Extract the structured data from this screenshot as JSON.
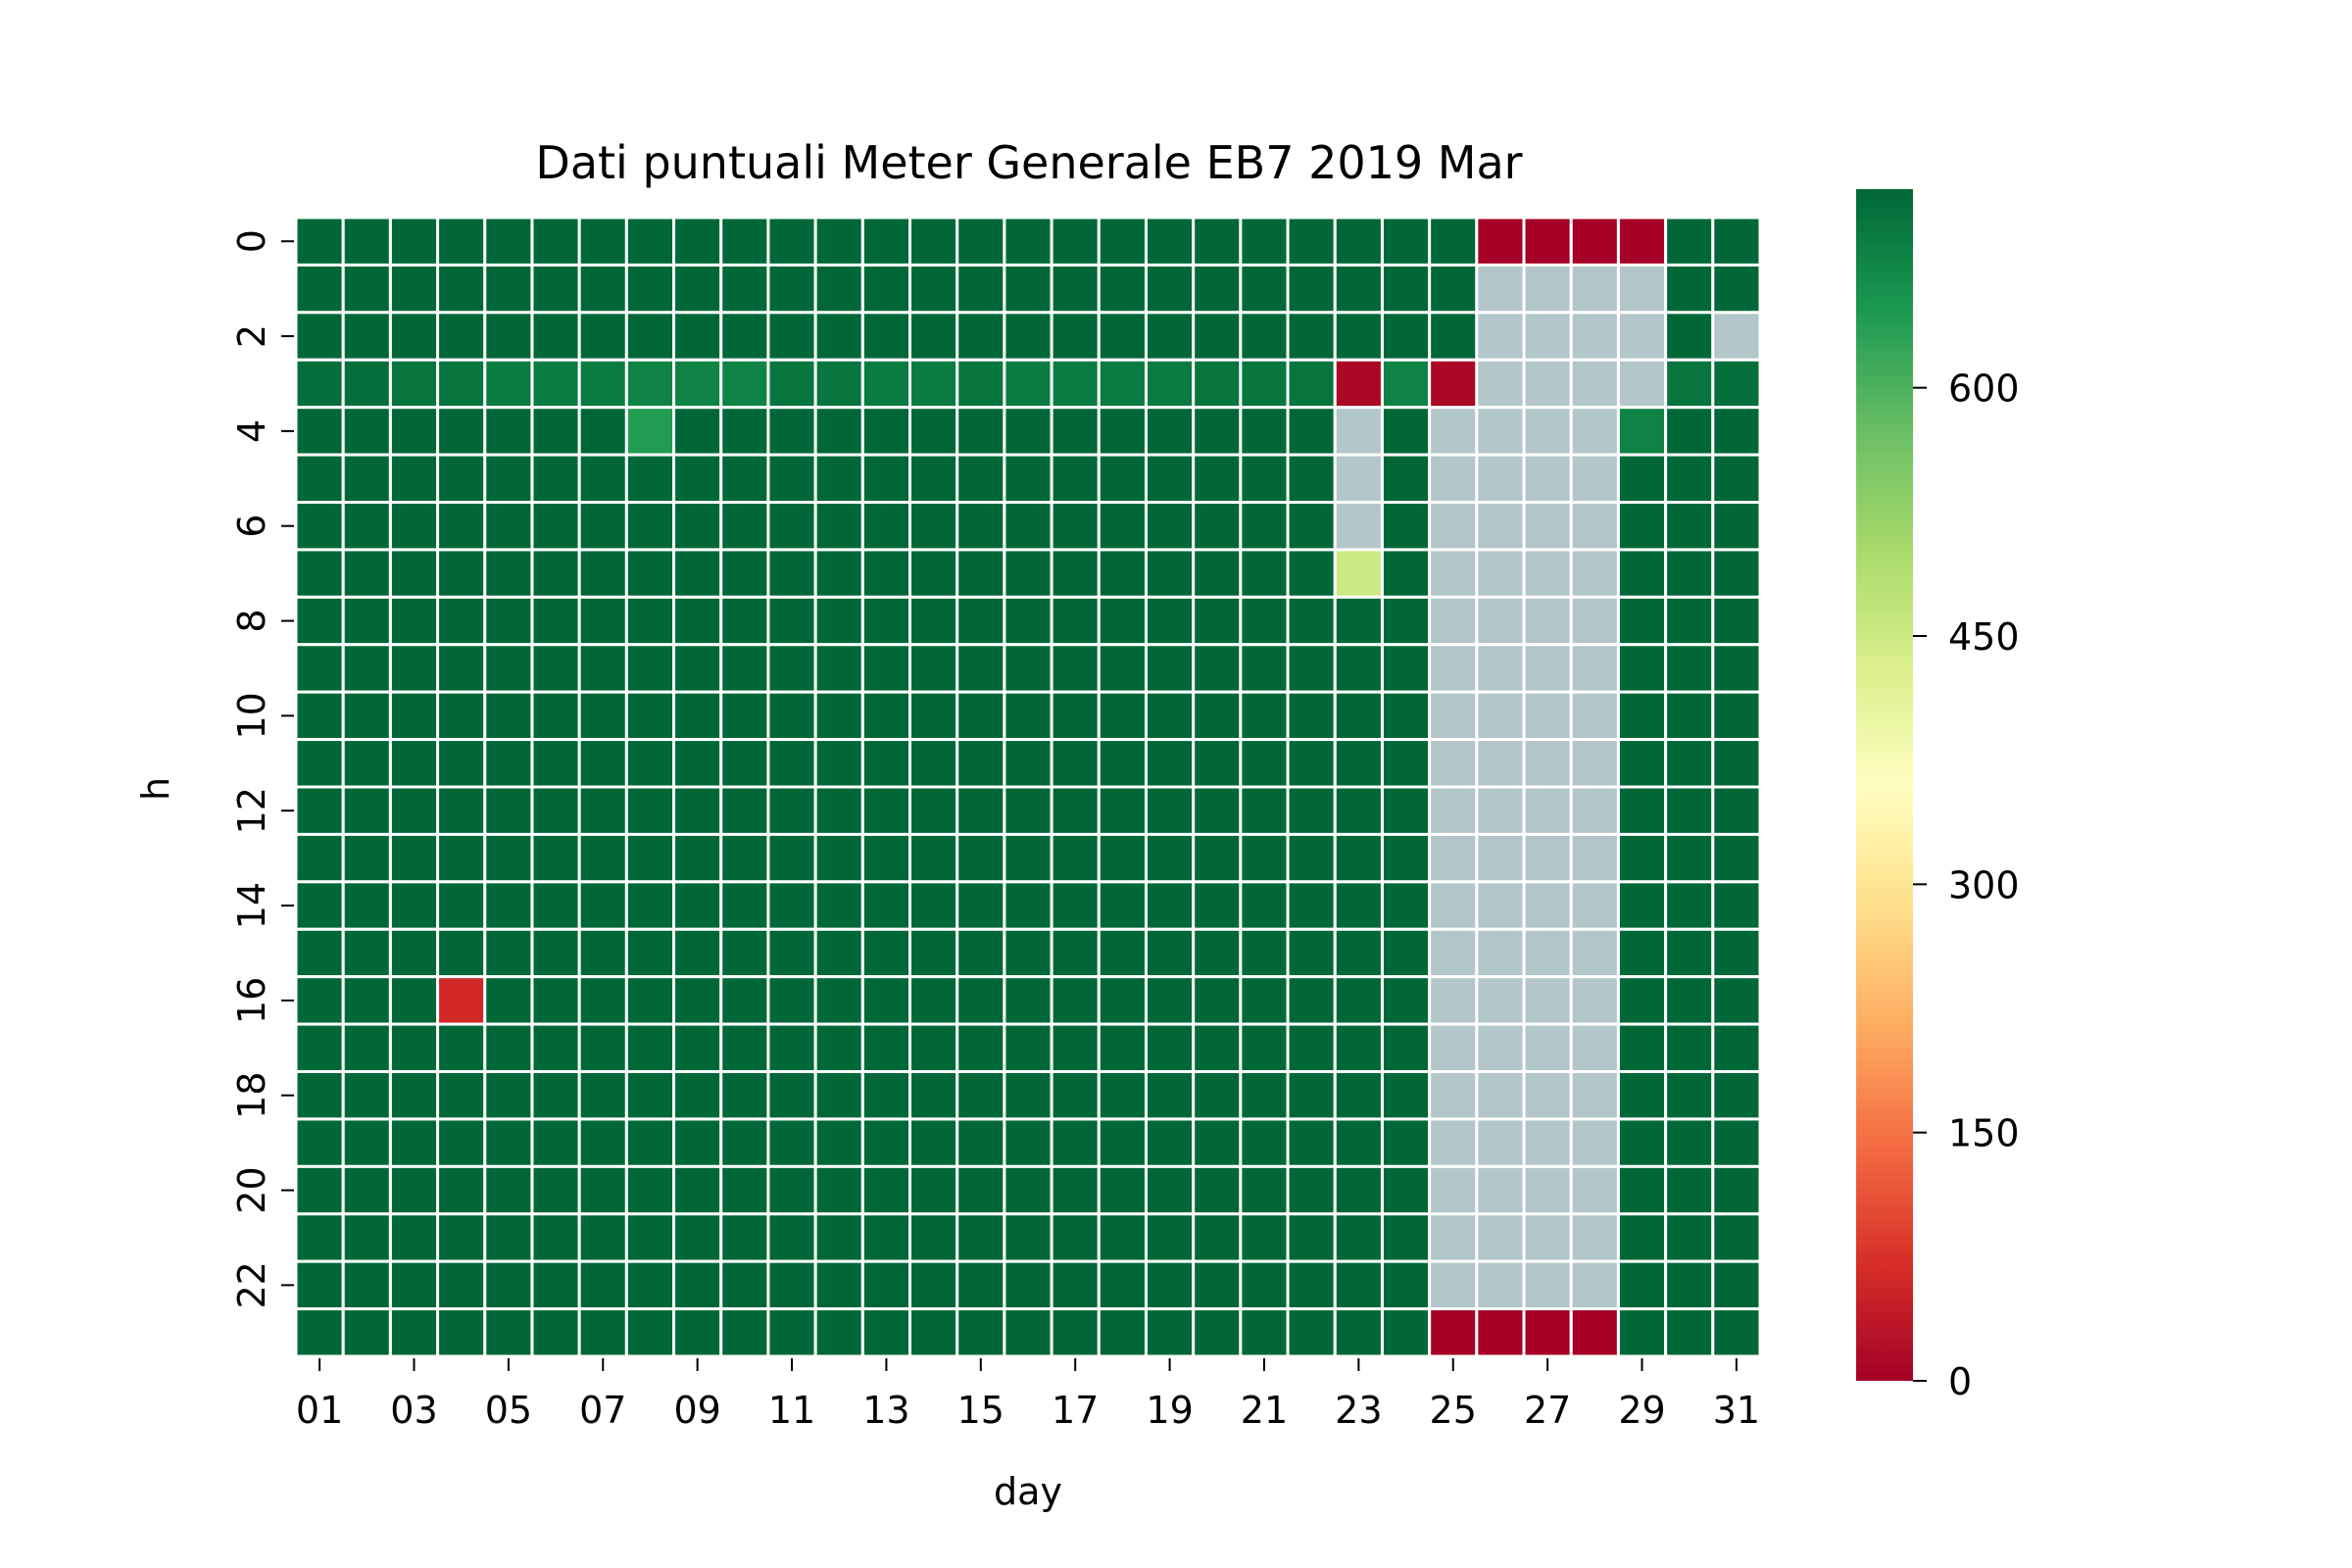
{
  "chart_data": {
    "type": "heatmap",
    "title": "Dati puntuali Meter Generale EB7 2019 Mar",
    "xlabel": "day",
    "ylabel": "h",
    "x_ticklabels": [
      "01",
      "03",
      "05",
      "07",
      "09",
      "11",
      "13",
      "15",
      "17",
      "19",
      "21",
      "23",
      "25",
      "27",
      "29",
      "31"
    ],
    "y_ticklabels": [
      "0",
      "2",
      "4",
      "6",
      "8",
      "10",
      "12",
      "14",
      "16",
      "18",
      "20",
      "22"
    ],
    "days": [
      "01",
      "02",
      "03",
      "04",
      "05",
      "06",
      "07",
      "08",
      "09",
      "10",
      "11",
      "12",
      "13",
      "14",
      "15",
      "16",
      "17",
      "18",
      "19",
      "20",
      "21",
      "22",
      "23",
      "24",
      "25",
      "26",
      "27",
      "28",
      "29",
      "30",
      "31"
    ],
    "hours": [
      0,
      1,
      2,
      3,
      4,
      5,
      6,
      7,
      8,
      9,
      10,
      11,
      12,
      13,
      14,
      15,
      16,
      17,
      18,
      19,
      20,
      21,
      22,
      23
    ],
    "baseline_value": 720,
    "colorbar": {
      "min": 0,
      "max": 720,
      "colormap": "RdYlGn",
      "ticks": [
        0,
        150,
        300,
        450,
        600
      ]
    },
    "missing_color": "#b3c6c9",
    "cell_border_color": "#ffffff",
    "hour3_values": [
      710,
      710,
      700,
      700,
      690,
      690,
      690,
      680,
      680,
      680,
      700,
      700,
      690,
      690,
      700,
      690,
      690,
      690,
      690,
      700,
      700,
      700,
      10,
      680,
      10,
      null,
      null,
      null,
      null,
      700,
      710
    ],
    "other_cells": [
      {
        "day": "04",
        "h": 16,
        "value": 60
      },
      {
        "day": "08",
        "h": 4,
        "value": 640
      },
      {
        "day": "23",
        "h": 7,
        "value": 450
      },
      {
        "day": "29",
        "h": 4,
        "value": 680
      },
      {
        "day": "26",
        "h": 0,
        "value": 0
      },
      {
        "day": "27",
        "h": 0,
        "value": 0
      },
      {
        "day": "28",
        "h": 0,
        "value": 0
      },
      {
        "day": "29",
        "h": 0,
        "value": 0
      },
      {
        "day": "25",
        "h": 23,
        "value": 0
      },
      {
        "day": "26",
        "h": 23,
        "value": 0
      },
      {
        "day": "27",
        "h": 23,
        "value": 0
      },
      {
        "day": "28",
        "h": 23,
        "value": 0
      }
    ],
    "missing_cells": [
      {
        "day": "23",
        "hours": [
          4,
          5,
          6
        ]
      },
      {
        "day": "25",
        "hours": [
          4,
          5,
          6,
          7,
          8,
          9,
          10,
          11,
          12,
          13,
          14,
          15,
          16,
          17,
          18,
          19,
          20,
          21,
          22
        ]
      },
      {
        "day": "26",
        "hours": [
          1,
          2,
          3,
          4,
          5,
          6,
          7,
          8,
          9,
          10,
          11,
          12,
          13,
          14,
          15,
          16,
          17,
          18,
          19,
          20,
          21,
          22
        ]
      },
      {
        "day": "27",
        "hours": [
          1,
          2,
          3,
          4,
          5,
          6,
          7,
          8,
          9,
          10,
          11,
          12,
          13,
          14,
          15,
          16,
          17,
          18,
          19,
          20,
          21,
          22
        ]
      },
      {
        "day": "28",
        "hours": [
          1,
          2,
          3,
          4,
          5,
          6,
          7,
          8,
          9,
          10,
          11,
          12,
          13,
          14,
          15,
          16,
          17,
          18,
          19,
          20,
          21,
          22
        ]
      },
      {
        "day": "29",
        "hours": [
          1,
          2,
          3
        ]
      },
      {
        "day": "31",
        "hours": [
          2
        ]
      }
    ]
  }
}
